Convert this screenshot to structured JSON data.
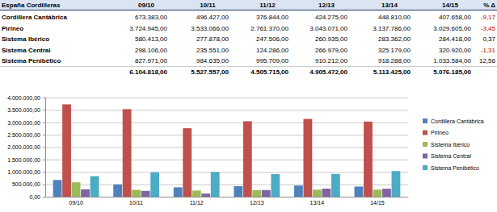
{
  "table": {
    "header": [
      "España Cordilleras",
      "09/10",
      "10/11",
      "11/12",
      "12/13",
      "13/14",
      "14/15",
      "% Δ"
    ],
    "rows": [
      [
        "Cordillera Cantábrica",
        "673.383,00",
        "496.427,00",
        "376.844,00",
        "424.275,00",
        "448.810,00",
        "407.658,00",
        "-9,17"
      ],
      [
        "Pirineo",
        "3.724.945,00",
        "3.533.066,00",
        "2.761.370,00",
        "3.043.071,00",
        "3.137.786,00",
        "3.029.605,00",
        "-3,45"
      ],
      [
        "Sistema Ibérico",
        "580.413,00",
        "277.878,00",
        "247.506,00",
        "260.935,00",
        "283.362,00",
        "284.418,00",
        "0,37"
      ],
      [
        "Sistema Central",
        "298.106,00",
        "235.551,00",
        "124.286,00",
        "266.979,00",
        "325.179,00",
        "320.920,00",
        "-1,31"
      ],
      [
        "Sistema Penibético",
        "827.971,00",
        "984.635,00",
        "995.709,00",
        "910.212,00",
        "918.288,00",
        "1.033.584,00",
        "12,56"
      ],
      [
        null,
        "6.104.818,00",
        "5.527.557,00",
        "4.505.715,00",
        "4.905.472,00",
        "5.113.425,00",
        "5.076.185,00"
      ]
    ]
  },
  "chart_data": {
    "type": "bar",
    "categories": [
      "09/10",
      "10/11",
      "11/12",
      "12/13",
      "13/14",
      "14/15"
    ],
    "series": [
      {
        "name": "Cordillera Cantábrica",
        "color": "#4f81bd",
        "values": [
          673383,
          496427,
          376844,
          424275,
          448810,
          407658
        ]
      },
      {
        "name": "Pirineo",
        "color": "#c0504d",
        "values": [
          3724945,
          3533066,
          2761370,
          3043071,
          3137786,
          3029605
        ]
      },
      {
        "name": "Sistema Ibérico",
        "color": "#9bbb59",
        "values": [
          580413,
          277878,
          247506,
          260935,
          283362,
          284418
        ]
      },
      {
        "name": "Sistema Central",
        "color": "#8064a2",
        "values": [
          298106,
          235551,
          124286,
          266979,
          325179,
          320920
        ]
      },
      {
        "name": "Sistema Penibético",
        "color": "#4bacc6",
        "values": [
          827971,
          984635,
          995709,
          910212,
          918288,
          1033584
        ]
      }
    ],
    "ylim": [
      0,
      4000000
    ],
    "yticks": [
      {
        "value": 0,
        "label": "0,00"
      },
      {
        "value": 500000,
        "label": "500.000,00"
      },
      {
        "value": 1000000,
        "label": "1.000.000,00"
      },
      {
        "value": 1500000,
        "label": "1.500.000,00"
      },
      {
        "value": 2000000,
        "label": "2.000.000,00"
      },
      {
        "value": 2500000,
        "label": "2.500.000,00"
      },
      {
        "value": 3000000,
        "label": "3.000.000,00"
      },
      {
        "value": 3500000,
        "label": "3.500.000,00"
      },
      {
        "value": 4000000,
        "label": "4.000.000,00"
      }
    ],
    "grid": true,
    "legend": "right"
  }
}
